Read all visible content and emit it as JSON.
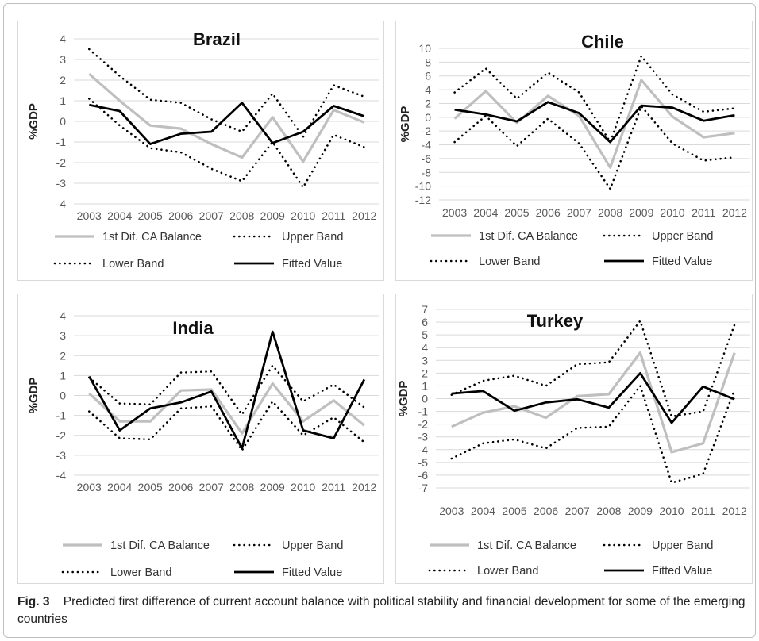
{
  "caption": {
    "label": "Fig. 3",
    "text": "Predicted first difference of current account balance with political stability and financial development for some of the emerging countries"
  },
  "colors": {
    "ca_balance": "#bfbfbf",
    "bands": "#000000",
    "fitted": "#000000",
    "grid": "#d9d9d9",
    "axis_text": "#595959"
  },
  "chart_data": [
    {
      "type": "line",
      "title": "Brazil",
      "ylabel": "%GDP",
      "xlabel": "",
      "ylim": [
        -4,
        4
      ],
      "ystep": 1,
      "grid": true,
      "legend_position": "bottom",
      "x": [
        "2003",
        "2004",
        "2005",
        "2006",
        "2007",
        "2008",
        "2009",
        "2010",
        "2011",
        "2012"
      ],
      "series": [
        {
          "name": "1st Dif. CA Balance",
          "style": "gray-solid",
          "values": [
            2.3,
            1.0,
            -0.2,
            -0.35,
            -1.1,
            -1.75,
            0.2,
            -1.95,
            0.55,
            -0.05
          ]
        },
        {
          "name": "Upper Band",
          "style": "dotted",
          "values": [
            3.5,
            2.2,
            1.05,
            0.9,
            0.1,
            -0.5,
            1.35,
            -0.75,
            1.75,
            1.2
          ]
        },
        {
          "name": "Lower Band",
          "style": "dotted",
          "values": [
            1.1,
            -0.2,
            -1.3,
            -1.5,
            -2.3,
            -2.9,
            -1.0,
            -3.2,
            -0.65,
            -1.25
          ]
        },
        {
          "name": "Fitted Value",
          "style": "black-solid",
          "values": [
            0.8,
            0.5,
            -1.1,
            -0.6,
            -0.5,
            0.9,
            -1.05,
            -0.5,
            0.75,
            0.25
          ]
        }
      ]
    },
    {
      "type": "line",
      "title": "Chile",
      "ylabel": "%GDP",
      "xlabel": "",
      "ylim": [
        -12,
        10
      ],
      "ystep": 2,
      "grid": true,
      "legend_position": "bottom",
      "x": [
        "2003",
        "2004",
        "2005",
        "2006",
        "2007",
        "2008",
        "2009",
        "2010",
        "2011",
        "2012"
      ],
      "series": [
        {
          "name": "1st Dif. CA Balance",
          "style": "gray-solid",
          "values": [
            -0.2,
            3.8,
            -0.8,
            3.1,
            0.2,
            -7.3,
            5.4,
            0.1,
            -2.9,
            -2.3
          ]
        },
        {
          "name": "Upper Band",
          "style": "dotted",
          "values": [
            3.6,
            7.1,
            2.7,
            6.5,
            3.6,
            -3.6,
            8.9,
            3.3,
            0.8,
            1.3
          ]
        },
        {
          "name": "Lower Band",
          "style": "dotted",
          "values": [
            -3.6,
            0.2,
            -4.2,
            -0.2,
            -3.8,
            -10.4,
            1.6,
            -3.8,
            -6.3,
            -5.8
          ]
        },
        {
          "name": "Fitted Value",
          "style": "black-solid",
          "values": [
            1.1,
            0.4,
            -0.6,
            2.2,
            0.6,
            -3.6,
            1.7,
            1.4,
            -0.5,
            0.3
          ]
        }
      ]
    },
    {
      "type": "line",
      "title": "India",
      "ylabel": "%GDP",
      "xlabel": "",
      "ylim": [
        -4,
        4
      ],
      "ystep": 1,
      "grid": true,
      "legend_position": "bottom",
      "x": [
        "2003",
        "2004",
        "2005",
        "2006",
        "2007",
        "2008",
        "2009",
        "2010",
        "2011",
        "2012"
      ],
      "series": [
        {
          "name": "1st Dif. CA Balance",
          "style": "gray-solid",
          "values": [
            0.1,
            -1.3,
            -1.3,
            0.25,
            0.3,
            -1.9,
            0.6,
            -1.3,
            -0.25,
            -1.5
          ]
        },
        {
          "name": "Upper Band",
          "style": "dotted",
          "values": [
            0.9,
            -0.4,
            -0.45,
            1.15,
            1.2,
            -0.95,
            1.5,
            -0.3,
            0.55,
            -0.6
          ]
        },
        {
          "name": "Lower Band",
          "style": "dotted",
          "values": [
            -0.8,
            -2.15,
            -2.2,
            -0.65,
            -0.55,
            -2.75,
            -0.3,
            -2.0,
            -1.1,
            -2.35
          ]
        },
        {
          "name": "Fitted Value",
          "style": "black-solid",
          "values": [
            0.95,
            -1.75,
            -0.65,
            -0.35,
            0.2,
            -2.65,
            3.2,
            -1.75,
            -2.15,
            0.8
          ]
        }
      ]
    },
    {
      "type": "line",
      "title": "Turkey",
      "ylabel": "%GDP",
      "xlabel": "",
      "ylim": [
        -7,
        7
      ],
      "ystep": 1,
      "grid": true,
      "legend_position": "bottom",
      "x": [
        "2003",
        "2004",
        "2005",
        "2006",
        "2007",
        "2008",
        "2009",
        "2010",
        "2011",
        "2012"
      ],
      "series": [
        {
          "name": "1st Dif. CA Balance",
          "style": "gray-solid",
          "values": [
            -2.2,
            -1.1,
            -0.6,
            -1.5,
            0.2,
            0.35,
            3.6,
            -4.2,
            -3.5,
            3.6
          ]
        },
        {
          "name": "Upper Band",
          "style": "dotted",
          "values": [
            0.3,
            1.4,
            1.8,
            1.0,
            2.7,
            2.85,
            6.1,
            -1.4,
            -1.0,
            5.8
          ]
        },
        {
          "name": "Lower Band",
          "style": "dotted",
          "values": [
            -4.7,
            -3.5,
            -3.2,
            -3.9,
            -2.3,
            -2.2,
            1.0,
            -6.6,
            -5.9,
            0.7
          ]
        },
        {
          "name": "Fitted Value",
          "style": "black-solid",
          "values": [
            0.4,
            0.6,
            -0.95,
            -0.3,
            -0.05,
            -0.7,
            2.0,
            -1.9,
            0.95,
            -0.05
          ]
        }
      ]
    }
  ]
}
